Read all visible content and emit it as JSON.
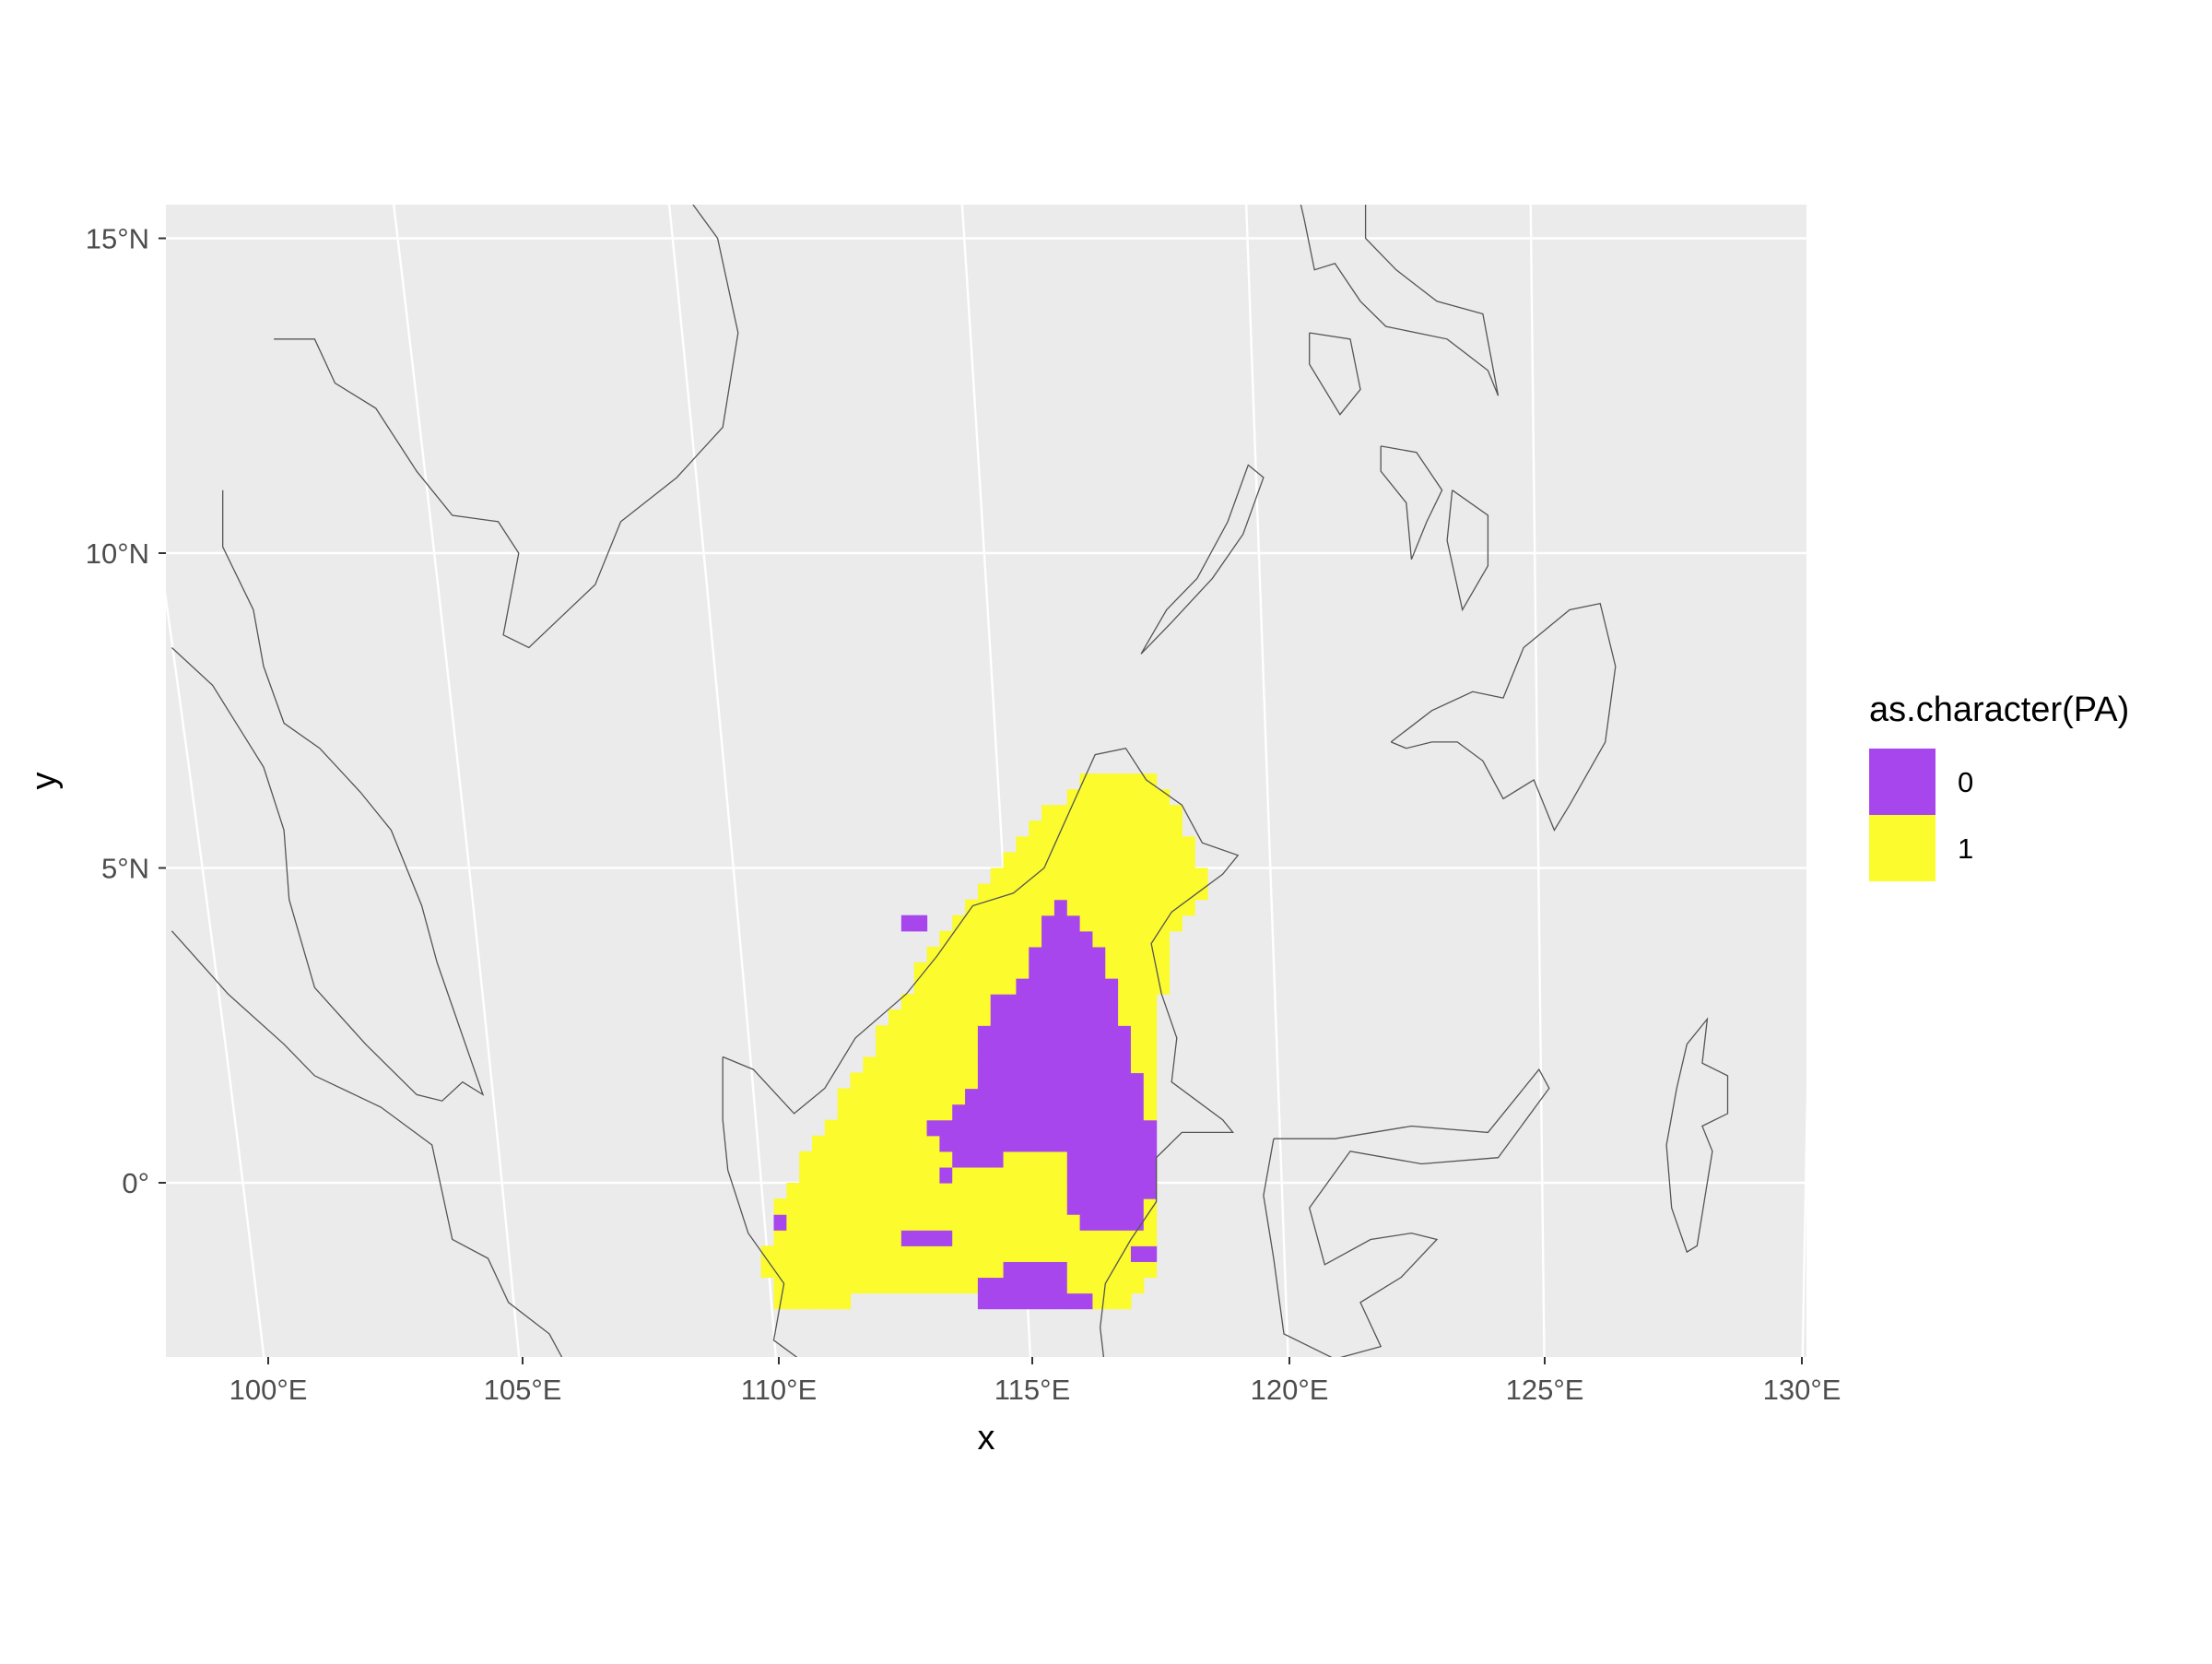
{
  "chart_data": {
    "type": "map",
    "xlabel": "x",
    "ylabel": "y",
    "x_range": [
      98.1,
      130.2
    ],
    "y_range": [
      -2.8,
      15.5
    ],
    "x_ticks": [
      {
        "value": 100,
        "label": "100°E"
      },
      {
        "value": 105,
        "label": "105°E"
      },
      {
        "value": 110,
        "label": "110°E"
      },
      {
        "value": 115,
        "label": "115°E"
      },
      {
        "value": 120,
        "label": "120°E"
      },
      {
        "value": 125,
        "label": "125°E"
      },
      {
        "value": 130,
        "label": "130°E"
      }
    ],
    "y_ticks": [
      {
        "value": 0,
        "label": "0°"
      },
      {
        "value": 5,
        "label": "5°N"
      },
      {
        "value": 10,
        "label": "10°N"
      },
      {
        "value": 15,
        "label": "15°N"
      }
    ],
    "grid": true,
    "panel_background": "#ebebeb",
    "grid_color": "#ffffff",
    "coastline_color": "#555555",
    "legend": {
      "title": "as.character(PA)",
      "position": "right",
      "items": [
        {
          "label": "0",
          "color": "#A846EE"
        },
        {
          "label": "1",
          "color": "#FBFB2E"
        }
      ]
    },
    "cell_size_deg": 0.25,
    "regions": [
      {
        "class": "1",
        "name": "presence",
        "polygon": [
          [
            116.6,
            6.5
          ],
          [
            117.4,
            6.5
          ],
          [
            118.2,
            5.5
          ],
          [
            118.6,
            4.6
          ],
          [
            117.9,
            4.2
          ],
          [
            117.7,
            3.4
          ],
          [
            117.4,
            1.8
          ],
          [
            117.6,
            -0.3
          ],
          [
            117.6,
            -1.2
          ],
          [
            117.2,
            -1.8
          ],
          [
            116.5,
            -2.0
          ],
          [
            114.6,
            -1.8
          ],
          [
            113.0,
            -1.8
          ],
          [
            111.0,
            -1.9
          ],
          [
            110.0,
            -1.9
          ],
          [
            109.8,
            -1.2
          ],
          [
            110.1,
            -0.4
          ],
          [
            110.6,
            0.4
          ],
          [
            111.5,
            1.6
          ],
          [
            112.3,
            2.6
          ],
          [
            113.0,
            3.6
          ],
          [
            113.8,
            4.5
          ],
          [
            114.8,
            5.4
          ],
          [
            115.6,
            6.1
          ],
          [
            116.1,
            6.5
          ]
        ]
      },
      {
        "class": "0",
        "name": "interior",
        "polygon": [
          [
            115.7,
            4.5
          ],
          [
            116.2,
            4.0
          ],
          [
            116.6,
            3.2
          ],
          [
            117.0,
            2.1
          ],
          [
            117.4,
            1.0
          ],
          [
            117.6,
            0.2
          ],
          [
            117.3,
            -0.4
          ],
          [
            117.1,
            -0.8
          ],
          [
            116.6,
            -0.7
          ],
          [
            116.2,
            -0.8
          ],
          [
            115.8,
            -0.4
          ],
          [
            115.8,
            0.4
          ],
          [
            115.4,
            0.5
          ],
          [
            114.6,
            0.4
          ],
          [
            113.8,
            0.2
          ],
          [
            113.2,
            0.0
          ],
          [
            113.4,
            0.4
          ],
          [
            113.0,
            0.9
          ],
          [
            113.8,
            1.2
          ],
          [
            114.0,
            2.0
          ],
          [
            114.3,
            2.9
          ],
          [
            114.9,
            3.3
          ],
          [
            115.2,
            4.0
          ]
        ]
      },
      {
        "class": "0",
        "name": "patch-south",
        "polygon": [
          [
            114.7,
            -1.2
          ],
          [
            115.7,
            -1.2
          ],
          [
            115.7,
            -1.6
          ],
          [
            116.4,
            -1.7
          ],
          [
            116.3,
            -2.0
          ],
          [
            115.0,
            -2.0
          ],
          [
            114.0,
            -1.9
          ],
          [
            113.8,
            -1.7
          ],
          [
            114.3,
            -1.5
          ]
        ]
      },
      {
        "class": "0",
        "name": "patch-sw1",
        "polygon": [
          [
            112.6,
            -0.7
          ],
          [
            113.5,
            -0.7
          ],
          [
            113.5,
            -1.0
          ],
          [
            112.6,
            -1.0
          ]
        ]
      },
      {
        "class": "0",
        "name": "patch-sw2",
        "polygon": [
          [
            117.0,
            -0.9
          ],
          [
            117.6,
            -0.9
          ],
          [
            117.6,
            -1.2
          ],
          [
            117.0,
            -1.2
          ]
        ]
      },
      {
        "class": "0",
        "name": "patch-ne",
        "polygon": [
          [
            112.5,
            4.3
          ],
          [
            113.0,
            4.3
          ],
          [
            113.0,
            4.1
          ],
          [
            112.5,
            4.1
          ]
        ]
      },
      {
        "class": "0",
        "name": "patch-w",
        "polygon": [
          [
            110.0,
            -0.5
          ],
          [
            110.3,
            -0.5
          ],
          [
            110.3,
            -0.8
          ],
          [
            110.0,
            -0.8
          ]
        ]
      }
    ]
  }
}
